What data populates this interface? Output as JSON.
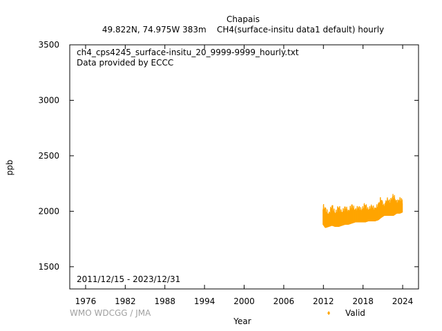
{
  "chart_data": {
    "type": "scatter",
    "title": "Chapais",
    "subtitle": "49.822N, 74.975W 383m    CH4(surface-insitu data1 default) hourly",
    "xlabel": "Year",
    "ylabel": "ppb",
    "xlim": [
      1973.6,
      2026.4
    ],
    "ylim": [
      1300,
      3500
    ],
    "x_ticks": [
      1976,
      1982,
      1988,
      1994,
      2000,
      2006,
      2012,
      2018,
      2024
    ],
    "y_ticks": [
      1500,
      2000,
      2500,
      3000,
      3500
    ],
    "grid": false,
    "legend_position": "bottom-right",
    "file_label": "ch4_cps4245_surface-insitu_20_9999-9999_hourly.txt",
    "provider_label": "Data provided by ECCC",
    "date_range": "2011/12/15 - 2023/12/31",
    "credit": "WMO WDCGG / JMA",
    "series": [
      {
        "name": "Valid",
        "color": "#ffa500",
        "envelope": [
          {
            "x": 2011.95,
            "low": 1880,
            "high": 2070
          },
          {
            "x": 2012.3,
            "low": 1850,
            "high": 2050
          },
          {
            "x": 2012.8,
            "low": 1860,
            "high": 1990
          },
          {
            "x": 2013.3,
            "low": 1870,
            "high": 2080
          },
          {
            "x": 2013.8,
            "low": 1860,
            "high": 2000
          },
          {
            "x": 2014.3,
            "low": 1860,
            "high": 2070
          },
          {
            "x": 2014.8,
            "low": 1870,
            "high": 2010
          },
          {
            "x": 2015.3,
            "low": 1880,
            "high": 2060
          },
          {
            "x": 2015.8,
            "low": 1880,
            "high": 2020
          },
          {
            "x": 2016.3,
            "low": 1890,
            "high": 2080
          },
          {
            "x": 2016.8,
            "low": 1900,
            "high": 2030
          },
          {
            "x": 2017.3,
            "low": 1900,
            "high": 2060
          },
          {
            "x": 2017.8,
            "low": 1900,
            "high": 2030
          },
          {
            "x": 2018.3,
            "low": 1900,
            "high": 2090
          },
          {
            "x": 2018.8,
            "low": 1910,
            "high": 2030
          },
          {
            "x": 2019.3,
            "low": 1910,
            "high": 2070
          },
          {
            "x": 2019.8,
            "low": 1910,
            "high": 2040
          },
          {
            "x": 2020.3,
            "low": 1920,
            "high": 2080
          },
          {
            "x": 2020.7,
            "low": 1940,
            "high": 2140
          },
          {
            "x": 2021.2,
            "low": 1960,
            "high": 2060
          },
          {
            "x": 2021.6,
            "low": 1960,
            "high": 2130
          },
          {
            "x": 2022.1,
            "low": 1960,
            "high": 2110
          },
          {
            "x": 2022.6,
            "low": 1960,
            "high": 2170
          },
          {
            "x": 2023.1,
            "low": 1980,
            "high": 2100
          },
          {
            "x": 2023.6,
            "low": 1980,
            "high": 2130
          },
          {
            "x": 2023.95,
            "low": 1990,
            "high": 2120
          }
        ]
      }
    ]
  }
}
